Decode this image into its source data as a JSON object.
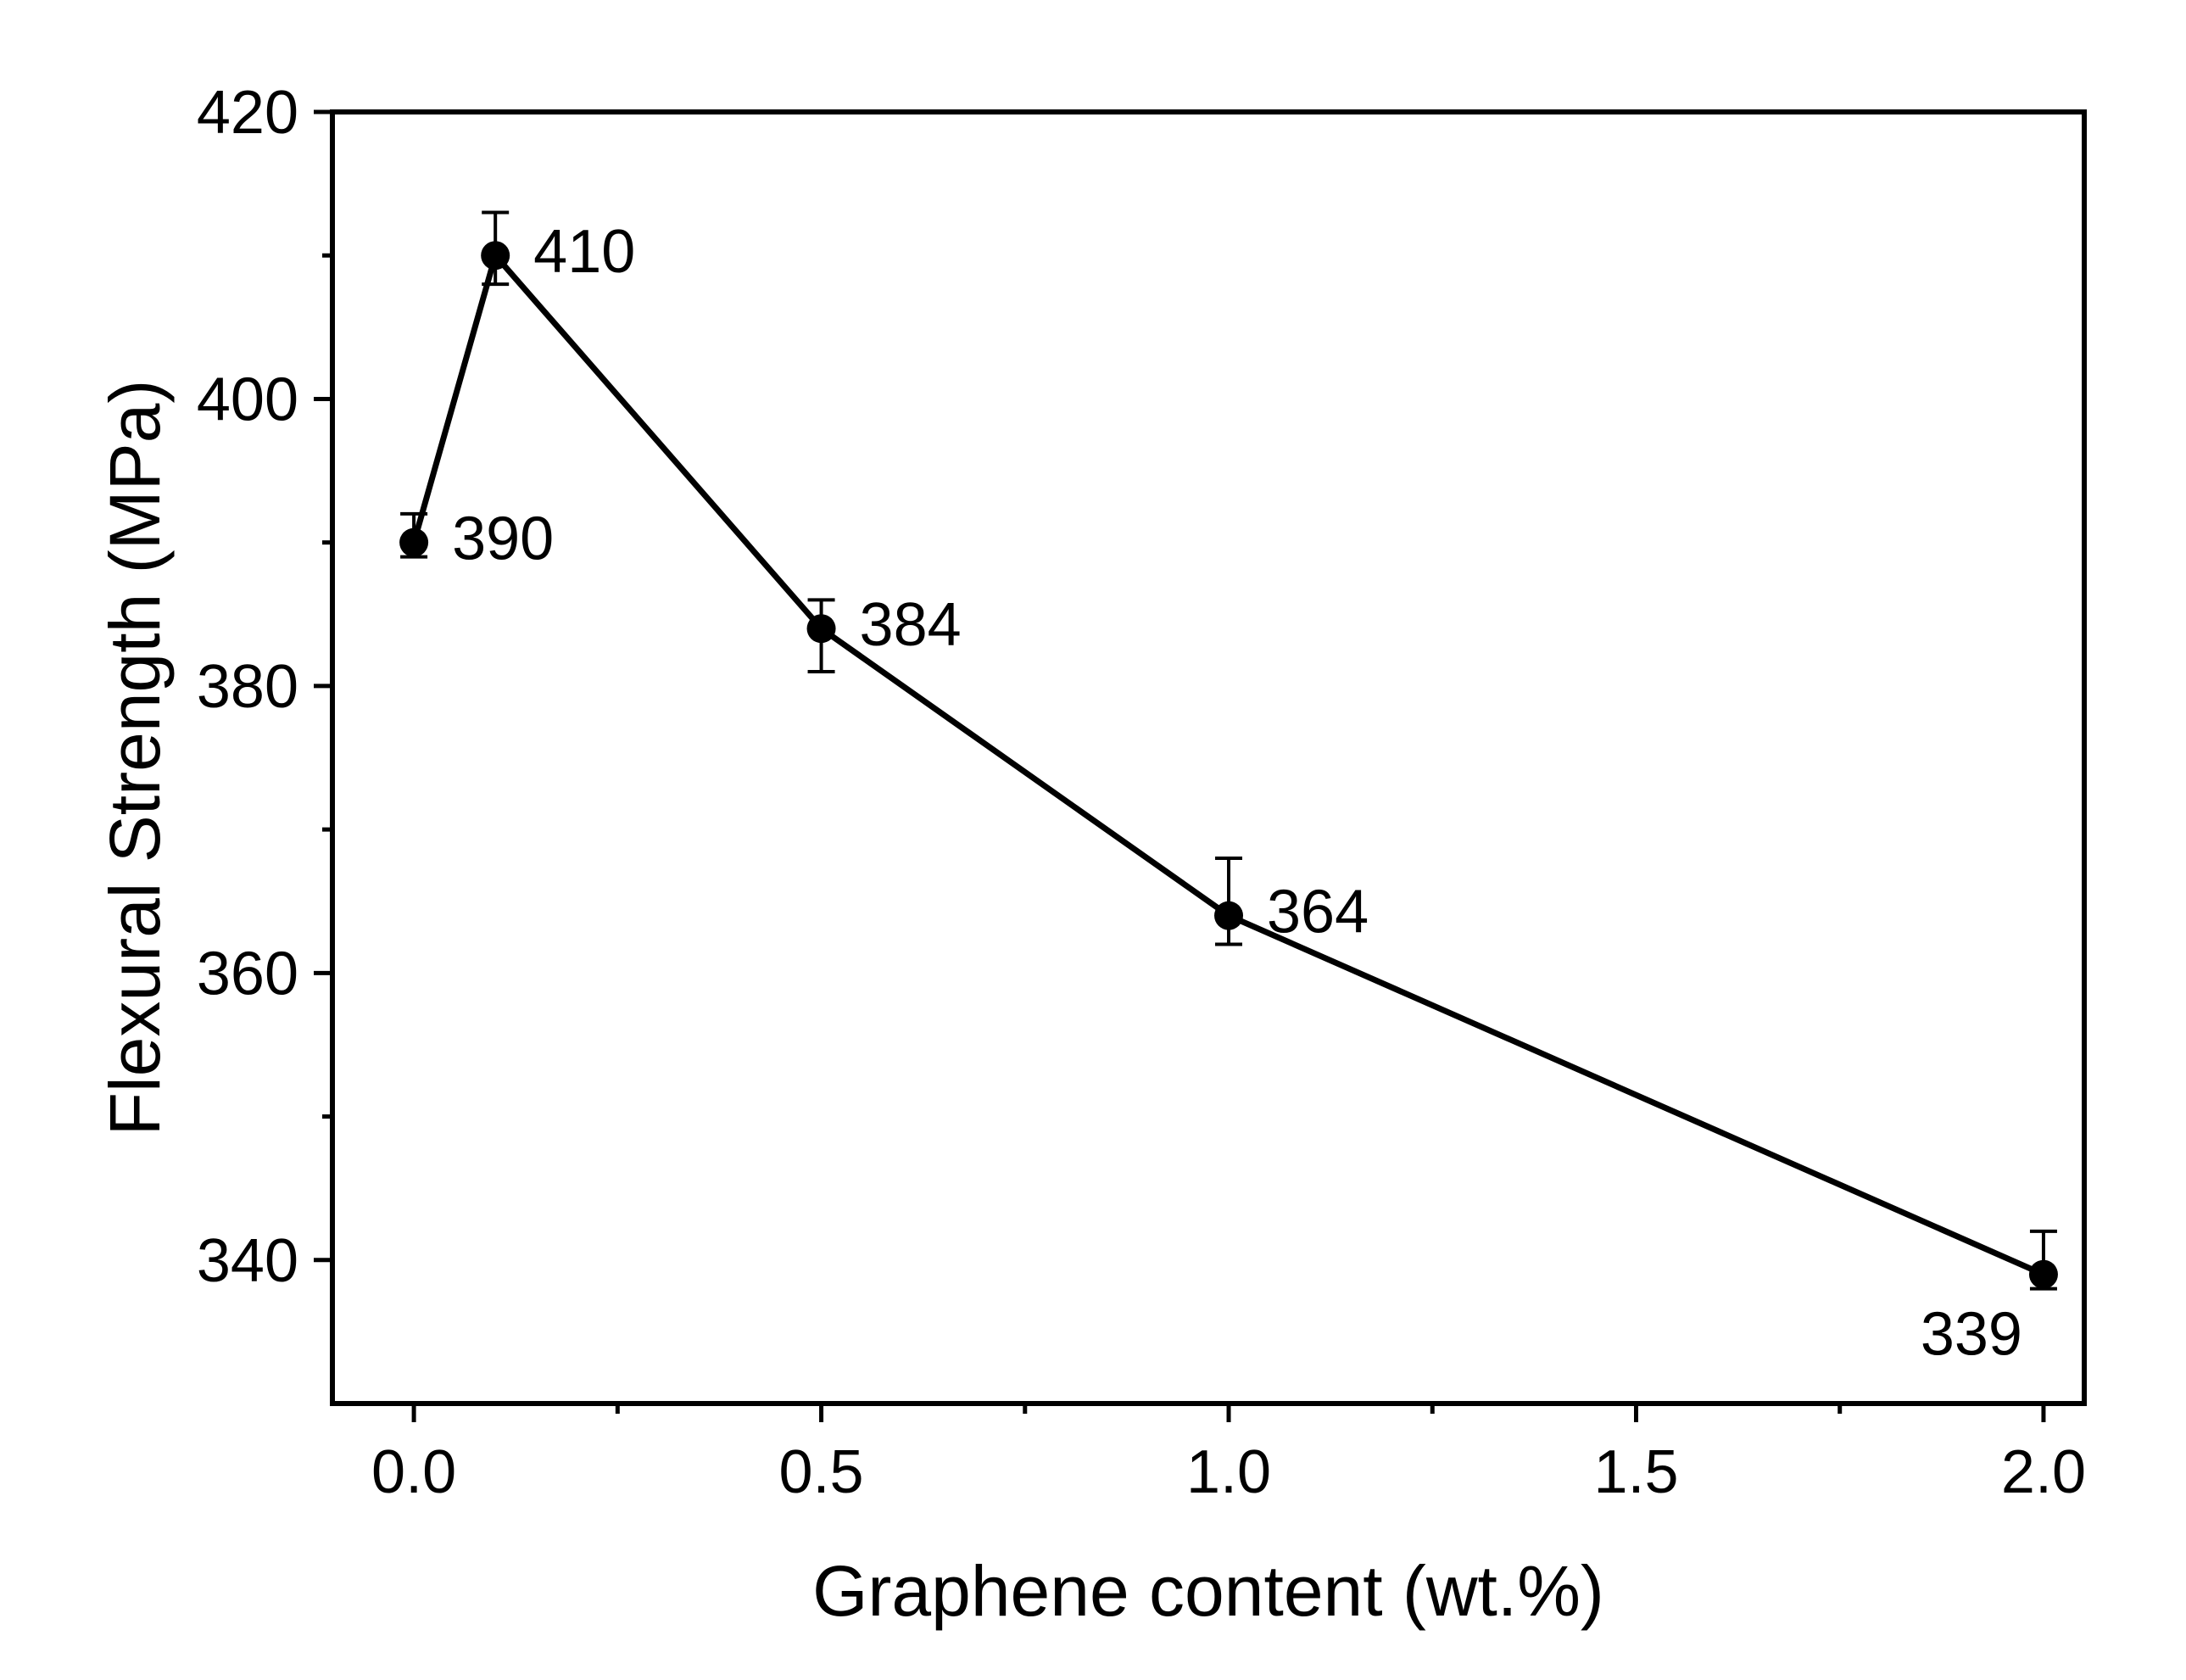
{
  "chart_data": {
    "type": "line",
    "xlabel": "Graphene content (wt.%)",
    "ylabel": "Flexural Strength (MPa)",
    "xlim": [
      -0.1,
      2.05
    ],
    "ylim": [
      330,
      420
    ],
    "x_ticks": [
      0.0,
      0.5,
      1.0,
      1.5,
      2.0
    ],
    "x_tick_labels": [
      "0.0",
      "0.5",
      "1.0",
      "1.5",
      "2.0"
    ],
    "x_minor_ticks": [
      0.25,
      0.75,
      1.25,
      1.75
    ],
    "y_ticks": [
      340,
      360,
      380,
      400,
      420
    ],
    "y_tick_labels": [
      "340",
      "360",
      "380",
      "400",
      "420"
    ],
    "y_minor_ticks": [
      350,
      370,
      390,
      410
    ],
    "grid": false,
    "legend": "none",
    "series": [
      {
        "x": [
          0.0,
          0.1,
          0.5,
          1.0,
          2.0
        ],
        "y": [
          390,
          410,
          384,
          364,
          339
        ],
        "err_low": [
          1,
          2,
          3,
          2,
          1
        ],
        "err_high": [
          2,
          3,
          2,
          4,
          3
        ],
        "color": "#000000",
        "marker": "circle"
      }
    ],
    "annotations": [
      {
        "text": "390",
        "x": 0.0,
        "y": 390,
        "placement": "right"
      },
      {
        "text": "410",
        "x": 0.1,
        "y": 410,
        "placement": "right"
      },
      {
        "text": "384",
        "x": 0.5,
        "y": 384,
        "placement": "right"
      },
      {
        "text": "364",
        "x": 1.0,
        "y": 364,
        "placement": "right"
      },
      {
        "text": "339",
        "x": 2.0,
        "y": 339,
        "placement": "below-left"
      }
    ]
  }
}
